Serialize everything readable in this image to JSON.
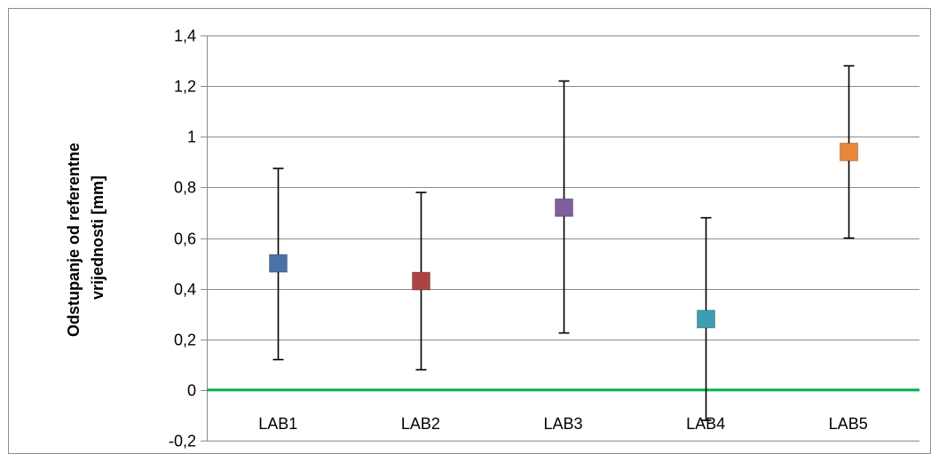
{
  "chart_data": {
    "type": "scatter",
    "categories": [
      "LAB1",
      "LAB2",
      "LAB3",
      "LAB4",
      "LAB5"
    ],
    "points": [
      {
        "category": "LAB1",
        "value": 0.5,
        "err_low": 0.12,
        "err_high": 0.875,
        "color": "#4a72a6"
      },
      {
        "category": "LAB2",
        "value": 0.43,
        "err_low": 0.08,
        "err_high": 0.78,
        "color": "#ac4541"
      },
      {
        "category": "LAB3",
        "value": 0.72,
        "err_low": 0.225,
        "err_high": 1.22,
        "color": "#7e5f9a"
      },
      {
        "category": "LAB4",
        "value": 0.28,
        "err_low": -0.12,
        "err_high": 0.68,
        "color": "#3d9eb1"
      },
      {
        "category": "LAB5",
        "value": 0.94,
        "err_low": 0.6,
        "err_high": 1.28,
        "color": "#e8873b"
      }
    ],
    "ylabel_lines": [
      "Odstupanje od referentne",
      "vrijednosti [mm]"
    ],
    "ylim": [
      -0.2,
      1.4
    ],
    "yticks": [
      "-0,2",
      "0",
      "0,2",
      "0,4",
      "0,6",
      "0,8",
      "1",
      "1,2",
      "1,4"
    ],
    "reference_line": {
      "value": 0,
      "color": "#00b050"
    },
    "grid": true,
    "gridline_color": "#8c8c8c",
    "legend": "none"
  }
}
